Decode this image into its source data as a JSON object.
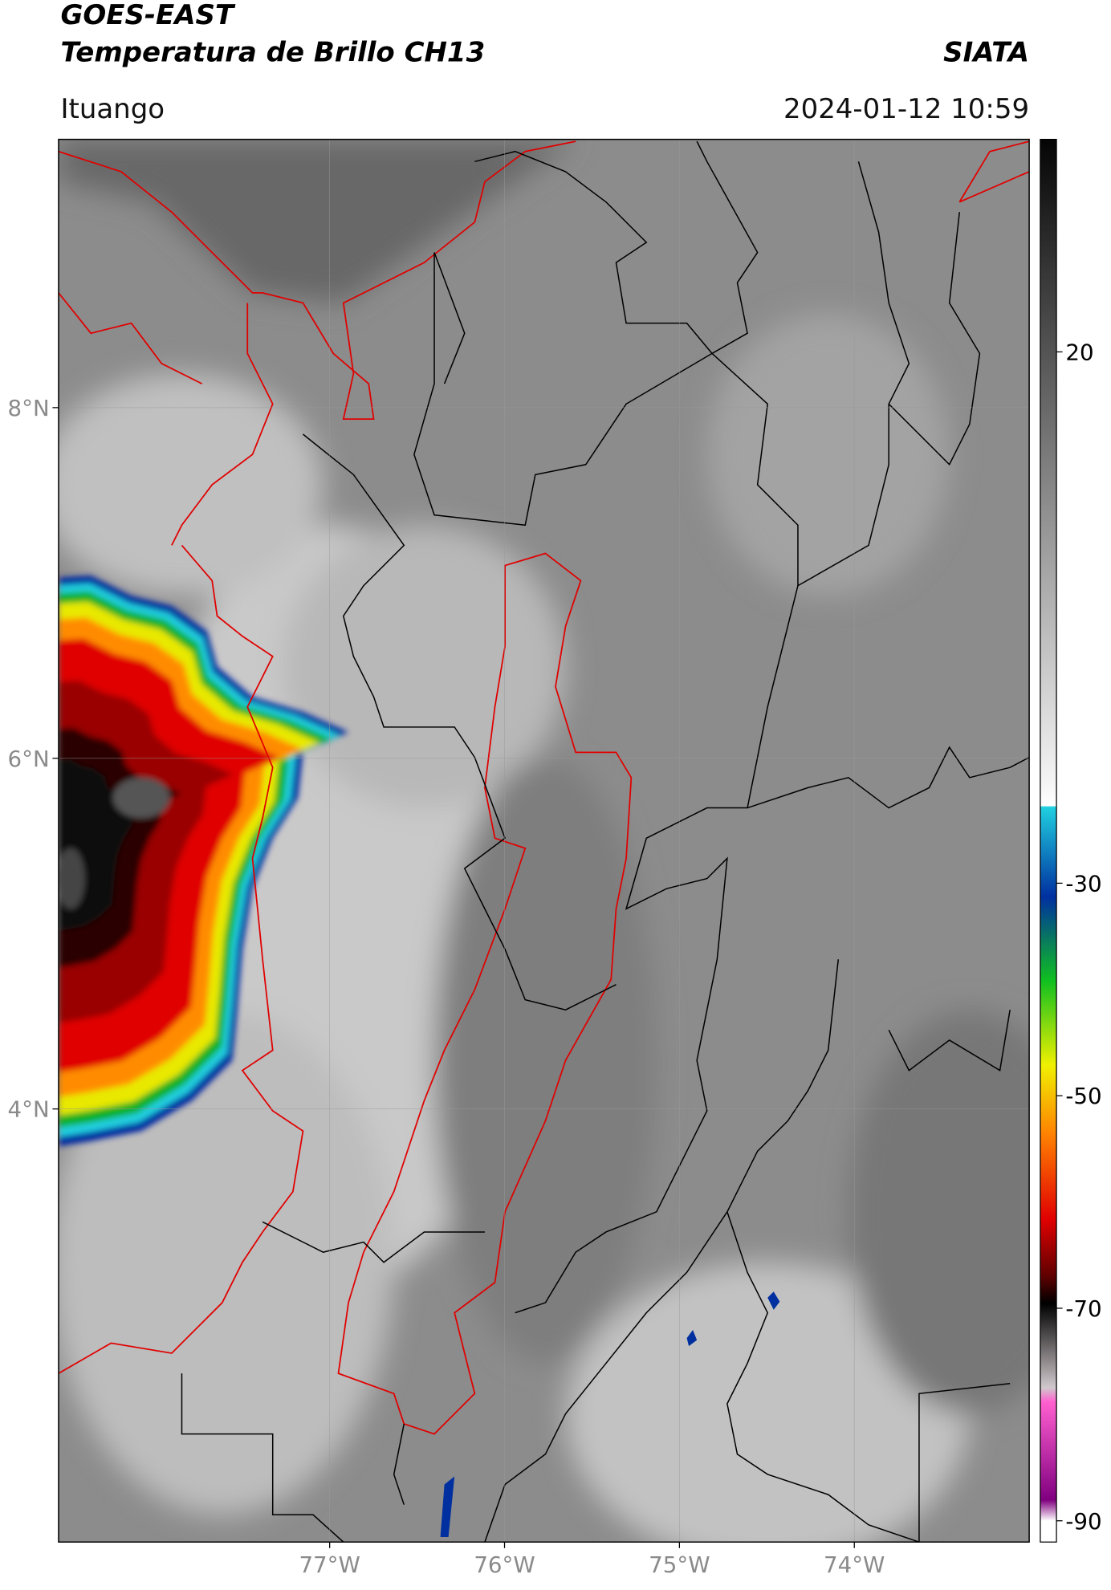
{
  "header": {
    "satellite": "GOES-EAST",
    "product": "Temperatura de Brillo CH13",
    "brand": "SIATA",
    "place": "Ituango",
    "datetime": "2024-01-12 10:59"
  },
  "map": {
    "lon_range": [
      -78.55,
      -73.0
    ],
    "lat_range": [
      1.53,
      9.53
    ],
    "lat_ticks": [
      {
        "value": 8,
        "label": "8°N"
      },
      {
        "value": 6,
        "label": "6°N"
      },
      {
        "value": 4,
        "label": "4°N"
      }
    ],
    "lon_ticks": [
      {
        "value": -77,
        "label": "77°W"
      },
      {
        "value": -76,
        "label": "76°W"
      },
      {
        "value": -75,
        "label": "75°W"
      },
      {
        "value": -74,
        "label": "74°W"
      }
    ]
  },
  "colorbar": {
    "range": [
      -92,
      40
    ],
    "ticks": [
      20,
      -30,
      -50,
      -70,
      -90
    ]
  }
}
